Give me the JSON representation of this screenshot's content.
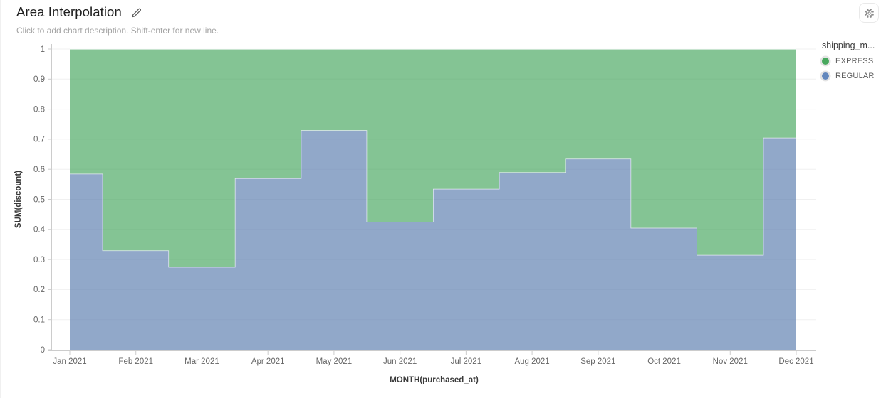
{
  "header": {
    "title": "Area Interpolation",
    "subtitle": "Click to add chart description. Shift-enter for new line."
  },
  "toolbar": {
    "settings_icon": "gear-icon",
    "edit_icon": "pencil-icon"
  },
  "legend": {
    "title": "shipping_m...",
    "items": [
      {
        "label": "EXPRESS",
        "color": "#48a85e"
      },
      {
        "label": "REGULAR",
        "color": "#6287bd"
      }
    ]
  },
  "chart_data": {
    "type": "area",
    "stack": "normalized",
    "interpolation": "step-middle",
    "title": "Area Interpolation",
    "xlabel": "MONTH(purchased_at)",
    "ylabel": "SUM(discount)",
    "ylim": [
      0,
      1
    ],
    "grid": true,
    "legend_position": "right",
    "x": [
      "Jan 2021",
      "Feb 2021",
      "Mar 2021",
      "Apr 2021",
      "May 2021",
      "Jun 2021",
      "Jul 2021",
      "Aug 2021",
      "Sep 2021",
      "Oct 2021",
      "Nov 2021",
      "Dec 2021"
    ],
    "yticks": [
      "0",
      "0.1",
      "0.2",
      "0.3",
      "0.4",
      "0.5",
      "0.6",
      "0.7",
      "0.8",
      "0.9",
      "1"
    ],
    "series": [
      {
        "name": "REGULAR",
        "fill": "rgba(93,127,176,0.68)",
        "values": [
          0.585,
          0.33,
          0.275,
          0.57,
          0.73,
          0.425,
          0.535,
          0.59,
          0.635,
          0.405,
          0.315,
          0.705
        ]
      },
      {
        "name": "EXPRESS",
        "fill": "rgba(69,166,92,0.66)",
        "values": [
          0.415,
          0.67,
          0.725,
          0.43,
          0.27,
          0.575,
          0.465,
          0.41,
          0.365,
          0.595,
          0.685,
          0.295
        ]
      }
    ]
  }
}
